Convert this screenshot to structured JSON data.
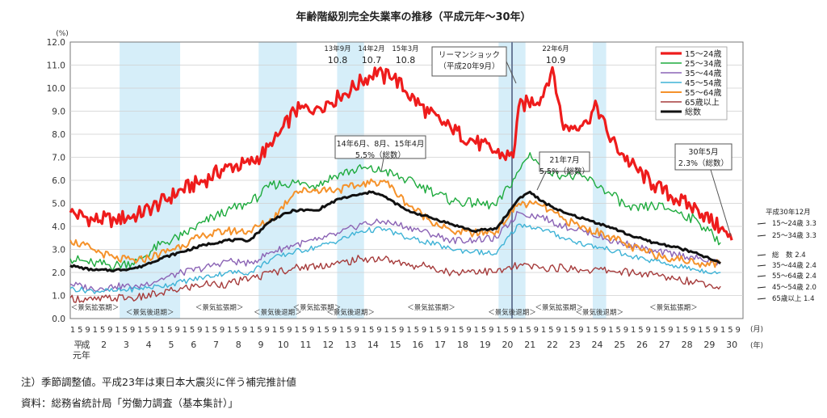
{
  "chart_data": {
    "type": "line",
    "title": "年齢階級別完全失業率の推移（平成元年～30年）",
    "y_unit": "(%)",
    "x_unit": "(年)",
    "month_unit": "(月)",
    "month_ticks": [
      "1",
      "5",
      "9"
    ],
    "ylim": [
      0.0,
      12.0
    ],
    "yticks": [
      "0.0",
      "1.0",
      "2.0",
      "3.0",
      "4.0",
      "5.0",
      "6.0",
      "7.0",
      "8.0",
      "9.0",
      "10.0",
      "11.0",
      "12.0"
    ],
    "x_first_label": [
      "平",
      "成",
      "元年"
    ],
    "year_labels": [
      "2",
      "3",
      "4",
      "5",
      "6",
      "7",
      "8",
      "9",
      "10",
      "11",
      "12",
      "13",
      "14",
      "15",
      "16",
      "17",
      "18",
      "19",
      "20",
      "21",
      "22",
      "23",
      "24",
      "25",
      "26",
      "27",
      "28",
      "29",
      "30"
    ],
    "grid": true,
    "legend_position": "top-right",
    "series": [
      {
        "name": "15～24歳",
        "color": "#ee1c1c",
        "width": 3.2,
        "points": [
          [
            1989.0,
            4.6
          ],
          [
            1990.0,
            4.3
          ],
          [
            1991.0,
            4.3
          ],
          [
            1992.0,
            4.5
          ],
          [
            1993.0,
            5.0
          ],
          [
            1994.0,
            5.6
          ],
          [
            1995.0,
            6.0
          ],
          [
            1996.0,
            6.6
          ],
          [
            1997.0,
            6.7
          ],
          [
            1998.0,
            7.5
          ],
          [
            1999.0,
            9.0
          ],
          [
            2000.0,
            9.2
          ],
          [
            2001.0,
            9.6
          ],
          [
            2002.0,
            10.3
          ],
          [
            2002.75,
            10.8
          ],
          [
            2003.0,
            10.2
          ],
          [
            2003.17,
            10.8
          ],
          [
            2004.0,
            9.8
          ],
          [
            2005.0,
            8.9
          ],
          [
            2006.0,
            8.2
          ],
          [
            2007.0,
            7.7
          ],
          [
            2008.0,
            7.2
          ],
          [
            2008.75,
            7.0
          ],
          [
            2009.0,
            9.2
          ],
          [
            2010.0,
            9.6
          ],
          [
            2010.5,
            10.9
          ],
          [
            2011.0,
            8.2
          ],
          [
            2012.0,
            8.6
          ],
          [
            2012.5,
            9.2
          ],
          [
            2013.0,
            7.9
          ],
          [
            2014.0,
            6.7
          ],
          [
            2015.0,
            5.8
          ],
          [
            2016.0,
            5.2
          ],
          [
            2017.0,
            4.7
          ],
          [
            2018.0,
            3.9
          ],
          [
            2018.5,
            3.4
          ]
        ]
      },
      {
        "name": "25～34歳",
        "color": "#1fab3e",
        "width": 1.4,
        "points": [
          [
            1989.0,
            2.6
          ],
          [
            1990.0,
            2.4
          ],
          [
            1991.0,
            2.3
          ],
          [
            1992.0,
            2.5
          ],
          [
            1993.0,
            3.2
          ],
          [
            1994.0,
            3.6
          ],
          [
            1995.0,
            4.2
          ],
          [
            1996.0,
            4.7
          ],
          [
            1997.0,
            5.0
          ],
          [
            1998.0,
            5.8
          ],
          [
            1999.0,
            5.9
          ],
          [
            2000.0,
            5.8
          ],
          [
            2001.0,
            6.3
          ],
          [
            2002.0,
            6.5
          ],
          [
            2003.0,
            6.4
          ],
          [
            2004.0,
            6.0
          ],
          [
            2005.0,
            5.6
          ],
          [
            2006.0,
            5.1
          ],
          [
            2007.0,
            5.0
          ],
          [
            2008.0,
            4.9
          ],
          [
            2009.0,
            6.4
          ],
          [
            2009.5,
            7.2
          ],
          [
            2010.0,
            6.6
          ],
          [
            2011.0,
            6.2
          ],
          [
            2012.0,
            6.1
          ],
          [
            2013.0,
            5.5
          ],
          [
            2014.0,
            4.7
          ],
          [
            2015.0,
            4.9
          ],
          [
            2016.0,
            4.7
          ],
          [
            2017.0,
            4.2
          ],
          [
            2018.0,
            3.3
          ]
        ]
      },
      {
        "name": "35～44歳",
        "color": "#8b63b5",
        "width": 1.4,
        "points": [
          [
            1989.0,
            1.5
          ],
          [
            1990.0,
            1.3
          ],
          [
            1991.0,
            1.4
          ],
          [
            1992.0,
            1.4
          ],
          [
            1993.0,
            1.7
          ],
          [
            1994.0,
            2.0
          ],
          [
            1995.0,
            2.2
          ],
          [
            1996.0,
            2.5
          ],
          [
            1997.0,
            2.4
          ],
          [
            1998.0,
            2.9
          ],
          [
            1999.0,
            3.2
          ],
          [
            2000.0,
            3.4
          ],
          [
            2001.0,
            3.7
          ],
          [
            2002.0,
            4.1
          ],
          [
            2003.0,
            4.2
          ],
          [
            2004.0,
            4.0
          ],
          [
            2005.0,
            3.7
          ],
          [
            2006.0,
            3.4
          ],
          [
            2007.0,
            3.4
          ],
          [
            2008.0,
            3.5
          ],
          [
            2009.0,
            4.6
          ],
          [
            2010.0,
            4.4
          ],
          [
            2011.0,
            4.0
          ],
          [
            2012.0,
            3.8
          ],
          [
            2013.0,
            3.4
          ],
          [
            2014.0,
            3.2
          ],
          [
            2015.0,
            2.9
          ],
          [
            2016.0,
            2.8
          ],
          [
            2017.0,
            2.6
          ],
          [
            2018.0,
            2.4
          ]
        ]
      },
      {
        "name": "45～54歳",
        "color": "#3fb3d6",
        "width": 1.4,
        "points": [
          [
            1989.0,
            1.3
          ],
          [
            1990.0,
            1.2
          ],
          [
            1991.0,
            1.2
          ],
          [
            1992.0,
            1.3
          ],
          [
            1993.0,
            1.4
          ],
          [
            1994.0,
            1.6
          ],
          [
            1995.0,
            1.8
          ],
          [
            1996.0,
            2.0
          ],
          [
            1997.0,
            2.0
          ],
          [
            1998.0,
            2.6
          ],
          [
            1999.0,
            2.9
          ],
          [
            2000.0,
            3.1
          ],
          [
            2001.0,
            3.4
          ],
          [
            2002.0,
            3.8
          ],
          [
            2003.0,
            3.9
          ],
          [
            2004.0,
            3.5
          ],
          [
            2005.0,
            3.3
          ],
          [
            2006.0,
            3.0
          ],
          [
            2007.0,
            2.9
          ],
          [
            2008.0,
            2.8
          ],
          [
            2009.0,
            4.1
          ],
          [
            2010.0,
            3.9
          ],
          [
            2011.0,
            3.5
          ],
          [
            2012.0,
            3.2
          ],
          [
            2013.0,
            3.0
          ],
          [
            2014.0,
            2.7
          ],
          [
            2015.0,
            2.5
          ],
          [
            2016.0,
            2.3
          ],
          [
            2017.0,
            2.1
          ],
          [
            2018.0,
            2.0
          ]
        ]
      },
      {
        "name": "55～64歳",
        "color": "#f5922b",
        "width": 2.0,
        "points": [
          [
            1989.0,
            3.4
          ],
          [
            1990.0,
            3.0
          ],
          [
            1991.0,
            2.6
          ],
          [
            1992.0,
            2.5
          ],
          [
            1993.0,
            2.8
          ],
          [
            1994.0,
            3.2
          ],
          [
            1995.0,
            3.6
          ],
          [
            1996.0,
            3.8
          ],
          [
            1997.0,
            3.8
          ],
          [
            1998.0,
            4.3
          ],
          [
            1999.0,
            5.5
          ],
          [
            2000.0,
            5.6
          ],
          [
            2001.0,
            5.6
          ],
          [
            2002.0,
            5.8
          ],
          [
            2003.0,
            6.0
          ],
          [
            2004.0,
            5.0
          ],
          [
            2005.0,
            4.3
          ],
          [
            2006.0,
            3.8
          ],
          [
            2007.0,
            3.7
          ],
          [
            2008.0,
            3.8
          ],
          [
            2009.0,
            5.0
          ],
          [
            2010.0,
            4.9
          ],
          [
            2011.0,
            4.3
          ],
          [
            2012.0,
            3.9
          ],
          [
            2013.0,
            3.6
          ],
          [
            2014.0,
            3.1
          ],
          [
            2015.0,
            2.8
          ],
          [
            2016.0,
            2.6
          ],
          [
            2017.0,
            2.4
          ],
          [
            2018.0,
            2.4
          ]
        ]
      },
      {
        "name": "65歳以上",
        "color": "#a63c3c",
        "width": 1.4,
        "points": [
          [
            1989.0,
            0.9
          ],
          [
            1990.0,
            0.8
          ],
          [
            1991.0,
            0.9
          ],
          [
            1992.0,
            0.9
          ],
          [
            1993.0,
            1.1
          ],
          [
            1994.0,
            1.3
          ],
          [
            1995.0,
            1.5
          ],
          [
            1996.0,
            1.5
          ],
          [
            1997.0,
            1.7
          ],
          [
            1998.0,
            2.0
          ],
          [
            1999.0,
            2.2
          ],
          [
            2000.0,
            2.3
          ],
          [
            2001.0,
            2.4
          ],
          [
            2002.0,
            2.6
          ],
          [
            2003.0,
            2.6
          ],
          [
            2004.0,
            2.3
          ],
          [
            2005.0,
            2.3
          ],
          [
            2006.0,
            2.0
          ],
          [
            2007.0,
            2.1
          ],
          [
            2008.0,
            2.0
          ],
          [
            2009.0,
            2.3
          ],
          [
            2010.0,
            2.2
          ],
          [
            2011.0,
            2.2
          ],
          [
            2012.0,
            2.1
          ],
          [
            2013.0,
            2.1
          ],
          [
            2014.0,
            2.0
          ],
          [
            2015.0,
            1.9
          ],
          [
            2016.0,
            1.7
          ],
          [
            2017.0,
            1.6
          ],
          [
            2018.0,
            1.4
          ]
        ]
      },
      {
        "name": "総数",
        "color": "#111111",
        "width": 3.0,
        "points": [
          [
            1989.0,
            2.3
          ],
          [
            1990.0,
            2.1
          ],
          [
            1991.0,
            2.1
          ],
          [
            1992.0,
            2.2
          ],
          [
            1993.0,
            2.6
          ],
          [
            1994.0,
            2.9
          ],
          [
            1995.0,
            3.2
          ],
          [
            1996.0,
            3.4
          ],
          [
            1997.0,
            3.4
          ],
          [
            1998.0,
            4.3
          ],
          [
            1999.0,
            4.7
          ],
          [
            2000.0,
            4.7
          ],
          [
            2001.0,
            5.2
          ],
          [
            2002.0,
            5.4
          ],
          [
            2002.5,
            5.5
          ],
          [
            2003.0,
            5.3
          ],
          [
            2004.0,
            4.7
          ],
          [
            2005.0,
            4.4
          ],
          [
            2006.0,
            4.1
          ],
          [
            2007.0,
            3.8
          ],
          [
            2008.0,
            3.9
          ],
          [
            2009.0,
            5.2
          ],
          [
            2009.5,
            5.5
          ],
          [
            2010.0,
            5.1
          ],
          [
            2011.0,
            4.6
          ],
          [
            2012.0,
            4.3
          ],
          [
            2013.0,
            4.0
          ],
          [
            2014.0,
            3.6
          ],
          [
            2015.0,
            3.3
          ],
          [
            2016.0,
            3.1
          ],
          [
            2017.0,
            2.8
          ],
          [
            2018.0,
            2.4
          ]
        ]
      }
    ],
    "expansion_periods": [
      {
        "label": "＜景気拡張期＞",
        "start": 1989.0,
        "end": 1991.2
      },
      {
        "label": "＜景気拡張期＞",
        "start": 1993.9,
        "end": 1997.4
      },
      {
        "label": "＜景気拡張期＞",
        "start": 1999.1,
        "end": 2000.9
      },
      {
        "label": "＜景気拡張期＞",
        "start": 2002.1,
        "end": 2008.1
      },
      {
        "label": "＜景気拡張期＞",
        "start": 2009.3,
        "end": 2012.3
      },
      {
        "label": "＜景気拡張期＞",
        "start": 2012.9,
        "end": 2018.9
      }
    ],
    "recession_periods": [
      {
        "label": "＜景気後退期＞",
        "start": 1991.2,
        "end": 1993.9
      },
      {
        "label": "＜景気後退期＞",
        "start": 1997.4,
        "end": 1999.1
      },
      {
        "label": "＜景気後退期＞",
        "start": 2000.9,
        "end": 2002.1
      },
      {
        "label": "＜景気後退期＞",
        "start": 2008.1,
        "end": 2009.3
      },
      {
        "label": "＜景気後退期＞",
        "start": 2012.3,
        "end": 2012.9
      }
    ],
    "annotations": {
      "red_peaks": [
        {
          "date": "13年9月",
          "value": "10.8"
        },
        {
          "date": "14年2月",
          "value": "10.7"
        },
        {
          "date": "15年3月",
          "value": "10.8"
        },
        {
          "date": "22年6月",
          "value": "10.9"
        }
      ],
      "lehman": [
        "リーマンショック",
        "（平成20年9月）"
      ],
      "total_peak_1": [
        "14年6月、8月、15年4月",
        "5.5%（総数）"
      ],
      "total_peak_2": [
        "21年7月",
        "5.5%（総数）"
      ],
      "total_latest": [
        "30年5月",
        "2.3%（総数）"
      ]
    },
    "end_values": {
      "title": "平成30年12月",
      "rows": [
        "15～24歳 3.3",
        "25～34歳 3.3",
        "総　数 2.4",
        "35～44歳 2.4",
        "55～64歳 2.4",
        "45～54歳 2.0",
        "65歳以上 1.4"
      ]
    }
  },
  "footnote": "注）季節調整値。平成23年は東日本大震災に伴う補完推計値",
  "source": "資料：総務省統計局「労働力調査（基本集計）」"
}
